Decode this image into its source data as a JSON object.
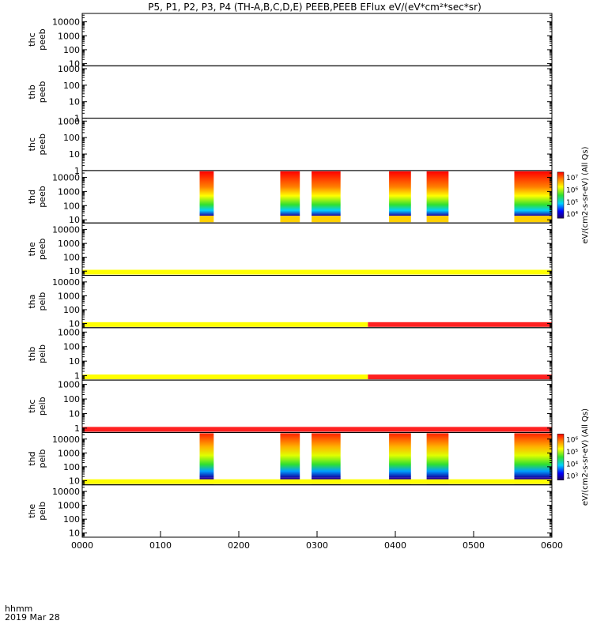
{
  "chart_data": {
    "type": "heatmap",
    "title": "P5, P1, P2, P3, P4 (TH-A,B,C,D,E) PEEB,PEEB EFlux eV/(eV*cm²*sec*sr)",
    "x_axis": {
      "range": [
        "0000",
        "0600"
      ],
      "ticks": [
        "0000",
        "0100",
        "0200",
        "0300",
        "0400",
        "0500",
        "0600"
      ],
      "corner_label": "hhmm",
      "date_label": "2019 Mar 28"
    },
    "panels": [
      {
        "label": [
          "thc",
          "peeb"
        ],
        "yticks": [
          "10",
          "100",
          "1000",
          "10000"
        ],
        "yrange": [
          7,
          40000
        ],
        "bars": []
      },
      {
        "label": [
          "thb",
          "peeb"
        ],
        "yticks": [
          "1",
          "10",
          "100",
          "1000"
        ],
        "yrange": [
          1,
          1500
        ],
        "bars": []
      },
      {
        "label": [
          "thc",
          "peeb"
        ],
        "yticks": [
          "1",
          "10",
          "100",
          "1000"
        ],
        "yrange": [
          1,
          1500
        ],
        "bars": []
      },
      {
        "label": [
          "thd",
          "peeb"
        ],
        "yticks": [
          "10",
          "100",
          "1000",
          "10000"
        ],
        "yrange": [
          6,
          30000
        ],
        "bars": [],
        "has_data": true,
        "colorbar": "colorbar_peeb"
      },
      {
        "label": [
          "the",
          "peeb"
        ],
        "yticks": [
          "10",
          "100",
          "1000",
          "10000"
        ],
        "yrange": [
          5,
          30000
        ],
        "bars": [
          {
            "segments": [
              [
                0,
                6,
                "yellow"
              ]
            ]
          }
        ]
      },
      {
        "label": [
          "tha",
          "peib"
        ],
        "yticks": [
          "10",
          "100",
          "1000",
          "10000"
        ],
        "yrange": [
          5,
          30000
        ],
        "bars": [
          {
            "segments": [
              [
                0,
                3.65,
                "yellow"
              ],
              [
                3.65,
                6,
                "red"
              ]
            ]
          }
        ]
      },
      {
        "label": [
          "thb",
          "peib"
        ],
        "yticks": [
          "1",
          "10",
          "100",
          "1000"
        ],
        "yrange": [
          0.5,
          2000
        ],
        "bars": [
          {
            "segments": [
              [
                0,
                3.65,
                "yellow"
              ],
              [
                3.65,
                6,
                "red"
              ]
            ]
          }
        ]
      },
      {
        "label": [
          "thc",
          "peib"
        ],
        "yticks": [
          "1",
          "10",
          "100",
          "1000"
        ],
        "yrange": [
          0.5,
          2000
        ],
        "bars": [
          {
            "segments": [
              [
                0,
                6,
                "red"
              ]
            ]
          }
        ]
      },
      {
        "label": [
          "thd",
          "peib"
        ],
        "yticks": [
          "10",
          "100",
          "1000",
          "10000"
        ],
        "yrange": [
          5,
          30000
        ],
        "bars": [
          {
            "segments": [
              [
                0,
                6,
                "yellow"
              ]
            ]
          }
        ],
        "has_data": true,
        "colorbar": "colorbar_peib"
      },
      {
        "label": [
          "the",
          "peib"
        ],
        "yticks": [
          "10",
          "100",
          "1000",
          "10000"
        ],
        "yrange": [
          5,
          30000
        ],
        "bars": []
      }
    ],
    "data_intervals_hours": [
      [
        1.5,
        1.68
      ],
      [
        2.53,
        2.78
      ],
      [
        2.93,
        3.3
      ],
      [
        3.92,
        4.2
      ],
      [
        4.4,
        4.68
      ],
      [
        5.52,
        6.0
      ]
    ],
    "colorbar_peeb": {
      "label": "eV/(cm2-s-sr-eV) (All Qs)",
      "ticks": [
        "10⁴",
        "10⁵",
        "10⁶",
        "10⁷"
      ]
    },
    "colorbar_peib": {
      "label": "eV/(cm2-s-sr-eV) (All Qs)",
      "ticks": [
        "10³",
        "10⁴",
        "10⁵",
        "10⁶"
      ]
    },
    "colors": {
      "red": "#ff2020",
      "yellow": "#ffff00",
      "green": "#30e030",
      "cyan": "#00e0ff",
      "blue": "#0000ff"
    }
  }
}
